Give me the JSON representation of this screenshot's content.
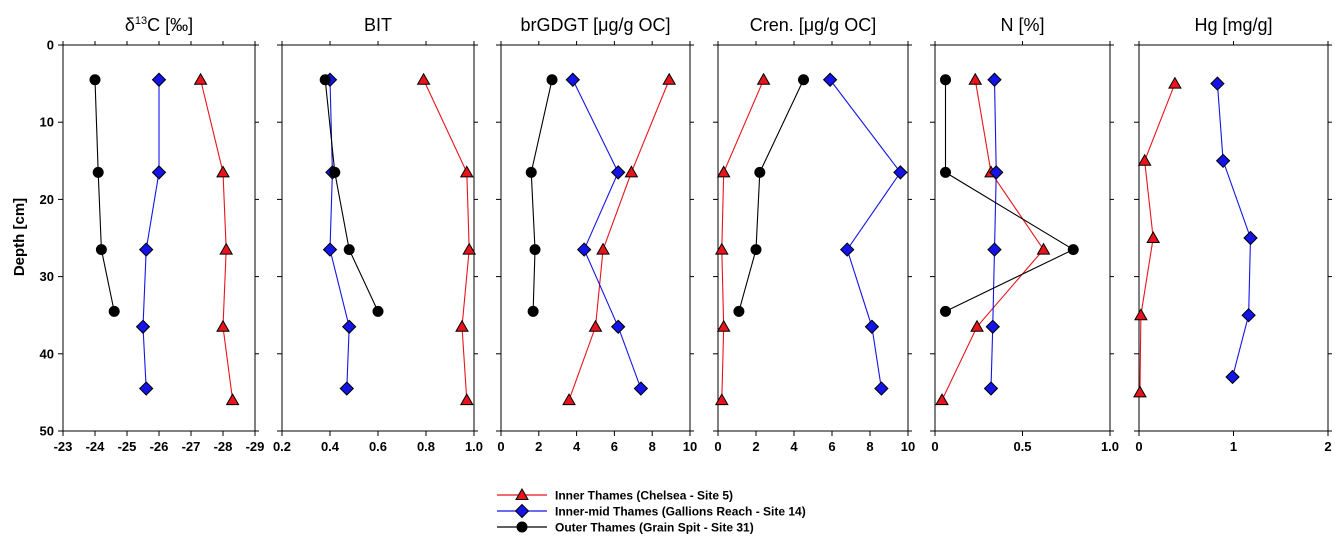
{
  "chart_data": {
    "type": "scatter",
    "ylabel": "Depth [cm]",
    "ylim": [
      0,
      50
    ],
    "yticks": [
      0,
      10,
      20,
      30,
      40,
      50
    ],
    "y_inverted": true,
    "grid": false,
    "legend_position": "bottom-center",
    "series_styles": [
      {
        "name": "Inner Thames (Chelsea - Site 5)",
        "color": "#e8141c",
        "marker": "triangle"
      },
      {
        "name": "Inner-mid Thames (Gallions Reach - Site 14)",
        "color": "#1414e6",
        "marker": "diamond"
      },
      {
        "name": "Outer Thames (Grain Spit - Site 31)",
        "color": "#000000",
        "marker": "circle"
      }
    ],
    "panels": [
      {
        "title_main": "δ",
        "title_sup": "13",
        "title_rest": "C [‰]",
        "xlim": [
          -23,
          -29
        ],
        "xticks": [
          "-23",
          "-24",
          "-25",
          "-26",
          "-27",
          "-28",
          "-29"
        ],
        "series": [
          {
            "name": "Inner Thames (Chelsea - Site 5)",
            "points": [
              [
                -27.3,
                4.5
              ],
              [
                -28.0,
                16.5
              ],
              [
                -28.1,
                26.5
              ],
              [
                -28.0,
                36.5
              ],
              [
                -28.3,
                46
              ]
            ]
          },
          {
            "name": "Inner-mid Thames (Gallions Reach - Site 14)",
            "points": [
              [
                -26.0,
                4.5
              ],
              [
                -26.0,
                16.5
              ],
              [
                -25.6,
                26.5
              ],
              [
                -25.5,
                36.5
              ],
              [
                -25.6,
                44.5
              ]
            ]
          },
          {
            "name": "Outer Thames (Grain Spit - Site 31)",
            "points": [
              [
                -24.0,
                4.5
              ],
              [
                -24.1,
                16.5
              ],
              [
                -24.2,
                26.5
              ],
              [
                -24.6,
                34.5
              ]
            ]
          }
        ]
      },
      {
        "title": "BIT",
        "xlim": [
          0.2,
          1.0
        ],
        "xticks": [
          "0.2",
          "0.4",
          "0.6",
          "0.8",
          "1.0"
        ],
        "series": [
          {
            "name": "Inner Thames (Chelsea - Site 5)",
            "points": [
              [
                0.79,
                4.5
              ],
              [
                0.97,
                16.5
              ],
              [
                0.98,
                26.5
              ],
              [
                0.95,
                36.5
              ],
              [
                0.97,
                46
              ]
            ]
          },
          {
            "name": "Inner-mid Thames (Gallions Reach - Site 14)",
            "points": [
              [
                0.4,
                4.5
              ],
              [
                0.41,
                16.5
              ],
              [
                0.4,
                26.5
              ],
              [
                0.48,
                36.5
              ],
              [
                0.47,
                44.5
              ]
            ]
          },
          {
            "name": "Outer Thames (Grain Spit - Site 31)",
            "points": [
              [
                0.38,
                4.5
              ],
              [
                0.42,
                16.5
              ],
              [
                0.48,
                26.5
              ],
              [
                0.6,
                34.5
              ]
            ]
          }
        ]
      },
      {
        "title": "brGDGT [μg/g OC]",
        "xlim": [
          0,
          10
        ],
        "xticks": [
          "0",
          "2",
          "4",
          "6",
          "8",
          "10"
        ],
        "series": [
          {
            "name": "Inner Thames (Chelsea - Site 5)",
            "points": [
              [
                8.9,
                4.5
              ],
              [
                6.9,
                16.5
              ],
              [
                5.4,
                26.5
              ],
              [
                5.0,
                36.5
              ],
              [
                3.6,
                46
              ]
            ]
          },
          {
            "name": "Inner-mid Thames (Gallions Reach - Site 14)",
            "points": [
              [
                3.8,
                4.5
              ],
              [
                6.2,
                16.5
              ],
              [
                4.4,
                26.5
              ],
              [
                6.2,
                36.5
              ],
              [
                7.4,
                44.5
              ]
            ]
          },
          {
            "name": "Outer Thames (Grain Spit - Site 31)",
            "points": [
              [
                2.7,
                4.5
              ],
              [
                1.6,
                16.5
              ],
              [
                1.8,
                26.5
              ],
              [
                1.7,
                34.5
              ]
            ]
          }
        ]
      },
      {
        "title": "Cren. [μg/g OC]",
        "xlim": [
          0,
          10
        ],
        "xticks": [
          "0",
          "2",
          "4",
          "6",
          "8",
          "10"
        ],
        "series": [
          {
            "name": "Inner Thames (Chelsea - Site 5)",
            "points": [
              [
                2.4,
                4.5
              ],
              [
                0.3,
                16.5
              ],
              [
                0.2,
                26.5
              ],
              [
                0.3,
                36.5
              ],
              [
                0.2,
                46
              ]
            ]
          },
          {
            "name": "Inner-mid Thames (Gallions Reach - Site 14)",
            "points": [
              [
                5.9,
                4.5
              ],
              [
                9.6,
                16.5
              ],
              [
                6.8,
                26.5
              ],
              [
                8.1,
                36.5
              ],
              [
                8.6,
                44.5
              ]
            ]
          },
          {
            "name": "Outer Thames (Grain Spit - Site 31)",
            "points": [
              [
                4.5,
                4.5
              ],
              [
                2.2,
                16.5
              ],
              [
                2.0,
                26.5
              ],
              [
                1.1,
                34.5
              ]
            ]
          }
        ]
      },
      {
        "title": "N [%]",
        "xlim": [
          0,
          1.0
        ],
        "xticks": [
          "0",
          "0.5",
          "1.0"
        ],
        "series": [
          {
            "name": "Inner Thames (Chelsea - Site 5)",
            "points": [
              [
                0.23,
                4.5
              ],
              [
                0.32,
                16.5
              ],
              [
                0.62,
                26.5
              ],
              [
                0.24,
                36.5
              ],
              [
                0.04,
                46
              ]
            ]
          },
          {
            "name": "Inner-mid Thames (Gallions Reach - Site 14)",
            "points": [
              [
                0.34,
                4.5
              ],
              [
                0.35,
                16.5
              ],
              [
                0.34,
                26.5
              ],
              [
                0.33,
                36.5
              ],
              [
                0.32,
                44.5
              ]
            ]
          },
          {
            "name": "Outer Thames (Grain Spit - Site 31)",
            "points": [
              [
                0.06,
                4.5
              ],
              [
                0.06,
                16.5
              ],
              [
                0.79,
                26.5
              ],
              [
                0.06,
                34.5
              ]
            ]
          }
        ]
      },
      {
        "title": "Hg [mg/g]",
        "xlim": [
          0,
          2
        ],
        "xticks": [
          "0",
          "1",
          "2"
        ],
        "series": [
          {
            "name": "Inner Thames (Chelsea - Site 5)",
            "points": [
              [
                0.38,
                5
              ],
              [
                0.06,
                15
              ],
              [
                0.15,
                25
              ],
              [
                0.02,
                35
              ],
              [
                0.01,
                45
              ]
            ]
          },
          {
            "name": "Inner-mid Thames (Gallions Reach - Site 14)",
            "points": [
              [
                0.83,
                5
              ],
              [
                0.89,
                15
              ],
              [
                1.18,
                25
              ],
              [
                1.16,
                35
              ],
              [
                0.99,
                43
              ]
            ]
          },
          {
            "name": "Outer Thames (Grain Spit - Site 31)",
            "points": []
          }
        ]
      }
    ]
  }
}
